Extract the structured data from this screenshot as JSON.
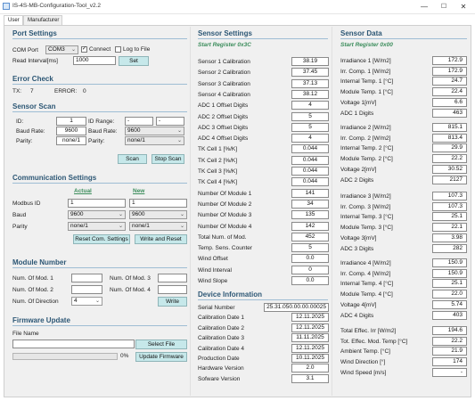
{
  "window": {
    "title": "IS-4S-MB-Configuration-Tool_v2.2",
    "minimize": "—",
    "maximize": "☐",
    "close": "✕"
  },
  "tabs": [
    "User",
    "Manufacturer"
  ],
  "port_settings": {
    "title": "Port Settings",
    "com_port_label": "COM Port",
    "com_port_value": "COM3",
    "connect_label": "Connect",
    "connect_checked": "✓",
    "log_label": "Log to File",
    "read_interval_label": "Read Interval[ms]",
    "read_interval_value": "1000",
    "set_label": "Set"
  },
  "error_check": {
    "title": "Error Check",
    "tx_label": "TX:",
    "tx_value": "7",
    "error_label": "ERROR:",
    "error_value": "0"
  },
  "sensor_scan": {
    "title": "Sensor Scan",
    "id_label": "ID:",
    "id_value": "1",
    "id_range_label": "ID Range:",
    "id_range_from": "-",
    "id_range_to": "-",
    "baud_label": "Baud Rate:",
    "baud_value": "9600",
    "baud2_label": "Baud Rate:",
    "baud2_value": "9600",
    "parity_label": "Parity:",
    "parity_value": "none/1",
    "parity2_label": "Parity:",
    "parity2_value": "none/1",
    "scan_label": "Scan",
    "stop_scan_label": "Stop Scan"
  },
  "comm_settings": {
    "title": "Communication Settings",
    "actual_label": "Actual",
    "new_label": "New",
    "modbus_label": "Modbus ID",
    "modbus_actual": "1",
    "modbus_new": "1",
    "baud_label": "Baud",
    "baud_actual": "9600",
    "baud_new": "9600",
    "parity_label": "Parity",
    "parity_actual": "none/1",
    "parity_new": "none/1",
    "reset_label": "Reset Com. Settings",
    "write_reset_label": "Write and Reset"
  },
  "module_number": {
    "title": "Module Number",
    "mod1_label": "Num. Of Mod. 1",
    "mod2_label": "Num. Of Mod. 2",
    "mod3_label": "Num. Of Mod. 3",
    "mod4_label": "Num. Of Mod. 4",
    "direction_label": "Num. Of Direction",
    "direction_value": "4",
    "write_label": "Write"
  },
  "firmware": {
    "title": "Firmware Update",
    "file_name_label": "File Name",
    "progress_text": "0%",
    "progress_fraction": 0,
    "select_label": "Select File",
    "update_label": "Update Firmware"
  },
  "sensor_settings": {
    "title": "Sensor Settings",
    "start_register": "Start Register 0x3C",
    "rows": [
      {
        "label": "Sensor 1 Calibration",
        "value": "38.19"
      },
      {
        "label": "Sensor 2 Calibration",
        "value": "37.45"
      },
      {
        "label": "Sensor 3 Calibration",
        "value": "37.13"
      },
      {
        "label": "Sensor 4 Calibration",
        "value": "38.12"
      },
      {
        "label": "ADC 1 Offset Digits",
        "value": "4"
      },
      {
        "label": "ADC 2 Offset Digits",
        "value": "5"
      },
      {
        "label": "ADC 3 Offset Digits",
        "value": "5"
      },
      {
        "label": "ADC 4 Offset Digits",
        "value": "4"
      },
      {
        "label": "TK Cell 1 [%/K]",
        "value": "0.044"
      },
      {
        "label": "TK Cell 2 [%/K]",
        "value": "0.044"
      },
      {
        "label": "TK Cell 3 [%/K]",
        "value": "0.044"
      },
      {
        "label": "TK Cell 4 [%/K]",
        "value": "0.044"
      },
      {
        "label": "Number Of Module 1",
        "value": "141"
      },
      {
        "label": "Number Of Module 2",
        "value": "34"
      },
      {
        "label": "Number Of Module 3",
        "value": "135"
      },
      {
        "label": "Number Of Module 4",
        "value": "142"
      },
      {
        "label": "Total Num. of Mod.",
        "value": "452"
      },
      {
        "label": "Temp. Sens. Counter",
        "value": "5"
      },
      {
        "label": "Wind Offset",
        "value": "0.0"
      },
      {
        "label": "Wind Interval",
        "value": "0"
      },
      {
        "label": "Wind Slope",
        "value": "0.0"
      }
    ]
  },
  "device_info": {
    "title": "Device Information",
    "rows": [
      {
        "label": "Serial Number",
        "value": "25.31.050.00.00.00025"
      },
      {
        "label": "Calibration Date 1",
        "value": "12.11.2025"
      },
      {
        "label": "Calibration Date 2",
        "value": "12.11.2025"
      },
      {
        "label": "Calibration Date 3",
        "value": "11.11.2025"
      },
      {
        "label": "Calibration Date 4",
        "value": "12.11.2025"
      },
      {
        "label": "Production Date",
        "value": "10.11.2025"
      },
      {
        "label": "Hardware Version",
        "value": "2.0"
      },
      {
        "label": "Sofware Version",
        "value": "3.1"
      }
    ]
  },
  "sensor_data": {
    "title": "Sensor Data",
    "start_register": "Start Register 0x00",
    "groups": [
      [
        {
          "label": "Irradiance 1 [W/m2]",
          "value": "172.9"
        },
        {
          "label": "Irr. Comp. 1 [W/m2]",
          "value": "172.9"
        },
        {
          "label": "Internal Temp. 1 [°C]",
          "value": "24.7"
        },
        {
          "label": "Module Temp. 1 [°C]",
          "value": "22.4"
        },
        {
          "label": "Voltage 1[mV]",
          "value": "6.6"
        },
        {
          "label": "ADC 1 Digits",
          "value": "463"
        }
      ],
      [
        {
          "label": "Irradiance 2 [W/m2]",
          "value": "815.1"
        },
        {
          "label": "Irr. Comp. 2 [W/m2]",
          "value": "813.4"
        },
        {
          "label": "Internal Temp. 2 [°C]",
          "value": "29.9"
        },
        {
          "label": "Module Temp. 2 [°C]",
          "value": "22.2"
        },
        {
          "label": "Voltage 2[mV]",
          "value": "30.52"
        },
        {
          "label": "ADC 2 Digits",
          "value": "2127"
        }
      ],
      [
        {
          "label": "Irradiance 3 [W/m2]",
          "value": "107.3"
        },
        {
          "label": "Irr. Comp. 3 [W/m2]",
          "value": "107.3"
        },
        {
          "label": "Internal Temp. 3 [°C]",
          "value": "25.1"
        },
        {
          "label": "Module Temp. 3 [°C]",
          "value": "22.1"
        },
        {
          "label": "Voltage 3[mV]",
          "value": "3.98"
        },
        {
          "label": "ADC 3 Digits",
          "value": "282"
        }
      ],
      [
        {
          "label": "Irradiance 4 [W/m2]",
          "value": "150.9"
        },
        {
          "label": "Irr. Comp. 4 [W/m2]",
          "value": "150.9"
        },
        {
          "label": "Internal Temp. 4 [°C]",
          "value": "25.1"
        },
        {
          "label": "Module Temp. 4 [°C]",
          "value": "22.0"
        },
        {
          "label": "Voltage 4[mV]",
          "value": "5.74"
        },
        {
          "label": "ADC 4 Digits",
          "value": "403"
        }
      ],
      [
        {
          "label": "Total Effec. Irr [W/m2]",
          "value": "194.6"
        },
        {
          "label": "Tot. Effec. Mod. Temp [°C]",
          "value": "22.2"
        },
        {
          "label": "Ambient Temp. [°C]",
          "value": "21.9"
        },
        {
          "label": "Wind Direction [°]",
          "value": "174"
        },
        {
          "label": "Wind Speed [m/s]",
          "value": "-"
        }
      ]
    ]
  }
}
